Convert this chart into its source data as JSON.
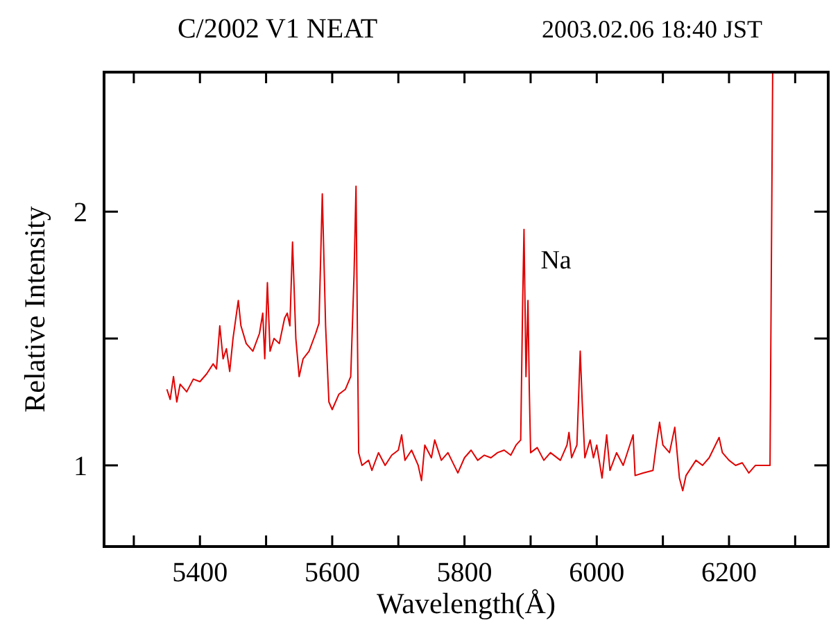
{
  "chart_data": {
    "type": "line",
    "title": "C/2002 V1 NEAT",
    "subtitle": "2003.02.06 18:40 JST",
    "xlabel": "Wavelength(Å)",
    "ylabel": "Relative Intensity",
    "xlim": [
      5255,
      6350
    ],
    "ylim": [
      0.68,
      2.55
    ],
    "xticks": [
      {
        "value": 5300,
        "label": null
      },
      5400,
      {
        "value": 5500,
        "label": null
      },
      5600,
      {
        "value": 5700,
        "label": null
      },
      5800,
      {
        "value": 5900,
        "label": null
      },
      6000,
      {
        "value": 6100,
        "label": null
      },
      6200,
      {
        "value": 6300,
        "label": null
      }
    ],
    "yticks": [
      1,
      {
        "value": 1.5,
        "label": null
      },
      2
    ],
    "grid": false,
    "marker": "none",
    "line_style": "solid",
    "annotations": [
      {
        "text": "Na",
        "x": 5890,
        "y": 1.93
      }
    ],
    "x": [
      5350,
      5355,
      5360,
      5365,
      5370,
      5380,
      5390,
      5400,
      5410,
      5420,
      5425,
      5430,
      5435,
      5440,
      5445,
      5450,
      5458,
      5462,
      5470,
      5480,
      5490,
      5495,
      5498,
      5502,
      5506,
      5512,
      5520,
      5528,
      5532,
      5536,
      5540,
      5545,
      5550,
      5556,
      5565,
      5575,
      5580,
      5585,
      5590,
      5595,
      5600,
      5610,
      5620,
      5628,
      5633,
      5636,
      5638,
      5640,
      5645,
      5655,
      5660,
      5670,
      5680,
      5690,
      5700,
      5705,
      5710,
      5720,
      5730,
      5735,
      5740,
      5750,
      5755,
      5765,
      5775,
      5790,
      5800,
      5810,
      5820,
      5830,
      5840,
      5850,
      5860,
      5870,
      5878,
      5885,
      5888,
      5890,
      5893,
      5896,
      5898,
      5900,
      5910,
      5920,
      5930,
      5945,
      5955,
      5958,
      5962,
      5970,
      5975,
      5978,
      5982,
      5990,
      5995,
      6000,
      6008,
      6015,
      6020,
      6030,
      6040,
      6055,
      6058,
      6070,
      6085,
      6090,
      6095,
      6100,
      6110,
      6118,
      6125,
      6130,
      6135,
      6150,
      6160,
      6170,
      6185,
      6190,
      6200,
      6210,
      6220,
      6230,
      6240,
      6255,
      6262,
      6264,
      6266
    ],
    "series": [
      {
        "color": "#e00000",
        "values": [
          1.3,
          1.26,
          1.35,
          1.25,
          1.32,
          1.29,
          1.34,
          1.33,
          1.36,
          1.4,
          1.38,
          1.55,
          1.42,
          1.46,
          1.37,
          1.5,
          1.65,
          1.55,
          1.48,
          1.45,
          1.52,
          1.6,
          1.42,
          1.72,
          1.45,
          1.5,
          1.48,
          1.58,
          1.6,
          1.55,
          1.88,
          1.5,
          1.35,
          1.42,
          1.45,
          1.52,
          1.56,
          2.07,
          1.55,
          1.25,
          1.22,
          1.28,
          1.3,
          1.35,
          1.75,
          2.1,
          1.55,
          1.05,
          1.0,
          1.02,
          0.98,
          1.05,
          1.0,
          1.04,
          1.06,
          1.12,
          1.02,
          1.06,
          1.0,
          0.94,
          1.08,
          1.03,
          1.1,
          1.02,
          1.05,
          0.97,
          1.03,
          1.06,
          1.02,
          1.04,
          1.03,
          1.05,
          1.06,
          1.04,
          1.08,
          1.1,
          1.65,
          1.93,
          1.35,
          1.65,
          1.3,
          1.05,
          1.07,
          1.02,
          1.05,
          1.02,
          1.08,
          1.13,
          1.03,
          1.08,
          1.45,
          1.25,
          1.03,
          1.1,
          1.03,
          1.08,
          0.95,
          1.12,
          0.98,
          1.05,
          1.0,
          1.12,
          0.96,
          0.97,
          0.98,
          1.08,
          1.17,
          1.08,
          1.05,
          1.15,
          0.95,
          0.9,
          0.96,
          1.02,
          1.0,
          1.03,
          1.11,
          1.05,
          1.02,
          1.0,
          1.01,
          0.97,
          1.0,
          1.0,
          1.0,
          1.78,
          2.55
        ]
      }
    ]
  }
}
